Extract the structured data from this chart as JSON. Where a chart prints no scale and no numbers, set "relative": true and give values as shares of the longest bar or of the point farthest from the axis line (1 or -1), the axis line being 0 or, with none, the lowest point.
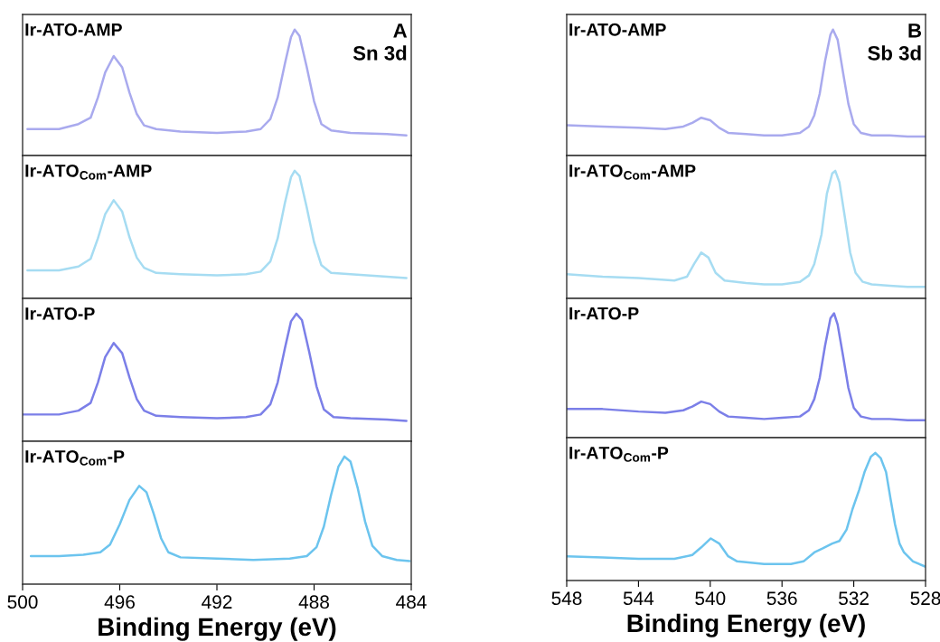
{
  "chart_data": [
    {
      "type": "line",
      "relative": true,
      "color": "#a9aaee",
      "annotations": [
        "Ir-ATO-AMP",
        "A",
        "Sn 3d"
      ],
      "xlim": [
        500,
        484
      ],
      "tick_labels": false,
      "x": [
        499.8,
        498.5,
        497.7,
        497.2,
        496.9,
        496.6,
        496.25,
        495.9,
        495.6,
        495.3,
        495.0,
        494.5,
        493.5,
        492,
        490.8,
        490.2,
        489.8,
        489.5,
        489.2,
        488.95,
        488.8,
        488.6,
        488.3,
        488.0,
        487.7,
        487.3,
        486.5,
        485,
        484.2
      ],
      "values": [
        0.21,
        0.21,
        0.25,
        0.3,
        0.46,
        0.66,
        0.79,
        0.7,
        0.5,
        0.33,
        0.24,
        0.21,
        0.19,
        0.18,
        0.19,
        0.21,
        0.29,
        0.46,
        0.73,
        0.94,
        1,
        0.95,
        0.7,
        0.43,
        0.25,
        0.2,
        0.18,
        0.17,
        0.16
      ]
    },
    {
      "type": "line",
      "relative": true,
      "color": "#a6dcf2",
      "annotations": [
        "Ir-ATO$_{Com}$-AMP"
      ],
      "xlim": [
        500,
        484
      ],
      "tick_labels": false,
      "x": [
        499.8,
        498.5,
        497.7,
        497.2,
        496.9,
        496.6,
        496.25,
        495.9,
        495.6,
        495.3,
        495.0,
        494.5,
        493.5,
        492,
        490.8,
        490.2,
        489.8,
        489.5,
        489.2,
        488.95,
        488.8,
        488.6,
        488.3,
        488.0,
        487.7,
        487.3,
        486.5,
        485,
        484.2
      ],
      "values": [
        0.22,
        0.22,
        0.25,
        0.31,
        0.47,
        0.66,
        0.77,
        0.68,
        0.48,
        0.32,
        0.24,
        0.2,
        0.19,
        0.18,
        0.19,
        0.21,
        0.29,
        0.47,
        0.75,
        0.95,
        1,
        0.96,
        0.71,
        0.44,
        0.26,
        0.2,
        0.19,
        0.17,
        0.16
      ]
    },
    {
      "type": "line",
      "relative": true,
      "color": "#7b7fe8",
      "annotations": [
        "Ir-ATO-P"
      ],
      "xlim": [
        500,
        484
      ],
      "tick_labels": false,
      "x": [
        500,
        498.5,
        497.7,
        497.2,
        496.9,
        496.6,
        496.25,
        495.9,
        495.6,
        495.3,
        495.0,
        494.5,
        493.5,
        492,
        490.8,
        490.2,
        489.8,
        489.5,
        489.2,
        488.95,
        488.73,
        488.5,
        488.2,
        487.9,
        487.6,
        487.2,
        486.5,
        485,
        484.2
      ],
      "values": [
        0.21,
        0.21,
        0.24,
        0.3,
        0.46,
        0.66,
        0.77,
        0.69,
        0.5,
        0.33,
        0.24,
        0.2,
        0.19,
        0.18,
        0.19,
        0.21,
        0.29,
        0.46,
        0.73,
        0.94,
        1,
        0.95,
        0.7,
        0.43,
        0.25,
        0.19,
        0.18,
        0.17,
        0.16
      ]
    },
    {
      "type": "line",
      "relative": true,
      "color": "#6cc4ee",
      "annotations": [
        "Ir-ATO$_{Com}$-P"
      ],
      "xlim": [
        500,
        484
      ],
      "tick_labels": "x",
      "xlabel": "Binding Energy (eV)",
      "xticks": [
        500,
        496,
        492,
        488,
        484
      ],
      "x": [
        499.66,
        498.5,
        497.5,
        496.8,
        496.4,
        496.0,
        495.6,
        495.2,
        494.9,
        494.6,
        494.3,
        494.0,
        493.5,
        492,
        490.5,
        489,
        488.3,
        487.9,
        487.6,
        487.3,
        487.0,
        486.75,
        486.5,
        486.2,
        485.9,
        485.6,
        485.2,
        484.6,
        484.07
      ],
      "values": [
        0.22,
        0.22,
        0.23,
        0.25,
        0.31,
        0.47,
        0.66,
        0.77,
        0.72,
        0.55,
        0.36,
        0.25,
        0.21,
        0.2,
        0.19,
        0.2,
        0.22,
        0.29,
        0.45,
        0.7,
        0.92,
        1,
        0.96,
        0.75,
        0.49,
        0.3,
        0.22,
        0.19,
        0.18
      ]
    },
    {
      "type": "line",
      "relative": true,
      "color": "#a9aaee",
      "annotations": [
        "Ir-ATO-AMP",
        "B",
        "Sb 3d"
      ],
      "xlim": [
        548,
        528
      ],
      "tick_labels": false,
      "x": [
        548,
        546,
        544,
        542.5,
        541.5,
        541,
        540.5,
        540,
        539.5,
        539,
        538,
        537,
        536,
        535,
        534.5,
        534.2,
        533.9,
        533.6,
        533.3,
        533.16,
        532.9,
        532.6,
        532.3,
        532,
        531.6,
        531,
        530,
        529,
        528
      ],
      "values": [
        0.24,
        0.23,
        0.22,
        0.21,
        0.23,
        0.26,
        0.3,
        0.28,
        0.22,
        0.18,
        0.17,
        0.16,
        0.16,
        0.18,
        0.23,
        0.32,
        0.49,
        0.75,
        0.96,
        1,
        0.92,
        0.66,
        0.41,
        0.25,
        0.18,
        0.16,
        0.16,
        0.15,
        0.15
      ]
    },
    {
      "type": "line",
      "relative": true,
      "color": "#a6dcf2",
      "annotations": [
        "Ir-ATO$_{Com}$-AMP"
      ],
      "xlim": [
        548,
        528
      ],
      "tick_labels": false,
      "x": [
        548,
        546,
        544,
        542,
        541.3,
        540.9,
        540.5,
        540.1,
        539.7,
        539.2,
        538,
        537,
        536,
        535,
        534.5,
        534.2,
        533.8,
        533.5,
        533.2,
        533.03,
        532.8,
        532.5,
        532.2,
        531.9,
        531.5,
        531,
        530,
        529,
        528
      ],
      "values": [
        0.19,
        0.17,
        0.16,
        0.14,
        0.17,
        0.27,
        0.36,
        0.32,
        0.2,
        0.14,
        0.12,
        0.11,
        0.11,
        0.13,
        0.18,
        0.27,
        0.5,
        0.82,
        0.98,
        1,
        0.91,
        0.64,
        0.36,
        0.2,
        0.13,
        0.11,
        0.1,
        0.09,
        0.09
      ]
    },
    {
      "type": "line",
      "relative": true,
      "color": "#7b7fe8",
      "annotations": [
        "Ir-ATO-P"
      ],
      "xlim": [
        548,
        528
      ],
      "tick_labels": false,
      "x": [
        548,
        546,
        544,
        542.5,
        541.5,
        541,
        540.5,
        540,
        539.5,
        539,
        538,
        537,
        536,
        535,
        534.5,
        534.2,
        533.9,
        533.6,
        533.3,
        533.1,
        532.9,
        532.6,
        532.3,
        532,
        531.6,
        531,
        530,
        529,
        528
      ],
      "values": [
        0.23,
        0.23,
        0.21,
        0.2,
        0.22,
        0.25,
        0.29,
        0.27,
        0.21,
        0.17,
        0.16,
        0.15,
        0.16,
        0.17,
        0.22,
        0.31,
        0.48,
        0.74,
        0.96,
        1,
        0.91,
        0.66,
        0.4,
        0.24,
        0.17,
        0.15,
        0.15,
        0.14,
        0.14
      ]
    },
    {
      "type": "line",
      "relative": true,
      "color": "#6cc4ee",
      "annotations": [
        "Ir-ATO$_{Com}$-P"
      ],
      "xlim": [
        548,
        528
      ],
      "tick_labels": "x",
      "xlabel": "Binding Energy (eV)",
      "xticks": [
        548,
        544,
        540,
        536,
        532,
        528
      ],
      "x": [
        548,
        546,
        544,
        542,
        541,
        540.5,
        539.97,
        539.5,
        539,
        538.5,
        537,
        535.5,
        534.8,
        534.2,
        533.75,
        533.2,
        532.8,
        532.4,
        532.07,
        531.7,
        531.4,
        531.05,
        530.8,
        530.5,
        530.2,
        529.95,
        529.7,
        529.45,
        529.2,
        528.7,
        528.03
      ],
      "values": [
        0.19,
        0.18,
        0.17,
        0.17,
        0.2,
        0.26,
        0.33,
        0.29,
        0.19,
        0.15,
        0.13,
        0.13,
        0.15,
        0.22,
        0.25,
        0.29,
        0.31,
        0.4,
        0.56,
        0.71,
        0.85,
        0.97,
        1,
        0.96,
        0.85,
        0.64,
        0.44,
        0.29,
        0.22,
        0.15,
        0.11
      ]
    }
  ]
}
